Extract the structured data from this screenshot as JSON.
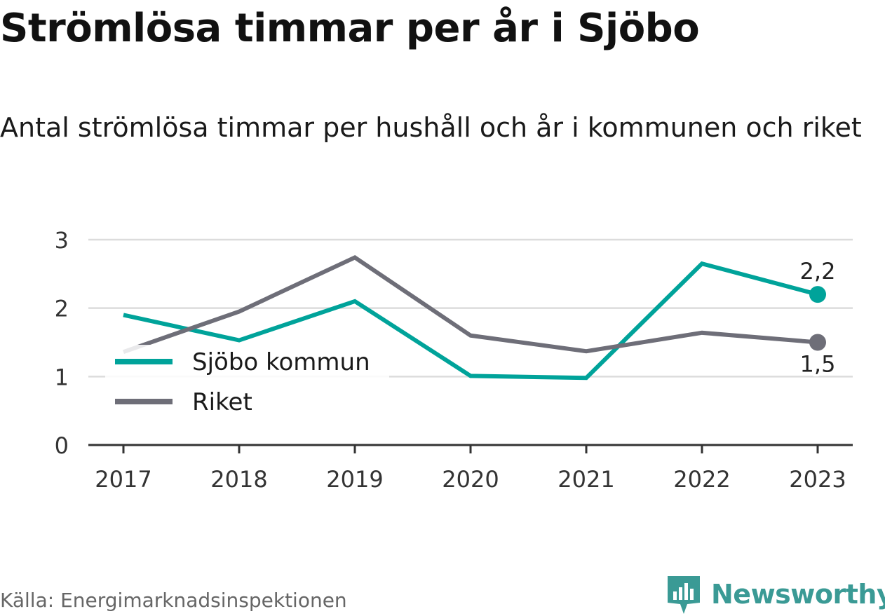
{
  "title": "Strömlösa timmar per år i Sjöbo",
  "subtitle": "Antal strömlösa timmar per hushåll och år i kommunen och riket",
  "source": "Källa: Energimarknadsinspektionen",
  "brand": {
    "name": "Newsworthy",
    "icon": "newsworthy-logo-icon",
    "color": "#3a9a95"
  },
  "chart_data": {
    "type": "line",
    "x": [
      "2017",
      "2018",
      "2019",
      "2020",
      "2021",
      "2022",
      "2023"
    ],
    "ylim": [
      0,
      3
    ],
    "yticks": [
      "0",
      "1",
      "2",
      "3"
    ],
    "grid": true,
    "legend_position": "left",
    "series": [
      {
        "name": "Sjöbo kommun",
        "color": "#00a39a",
        "values": [
          1.9,
          1.53,
          2.1,
          1.01,
          0.98,
          2.65,
          2.2
        ],
        "end_label": "2,2"
      },
      {
        "name": "Riket",
        "color": "#6e6e78",
        "values": [
          1.36,
          1.95,
          2.74,
          1.6,
          1.37,
          1.64,
          1.5
        ],
        "end_label": "1,5"
      }
    ]
  }
}
